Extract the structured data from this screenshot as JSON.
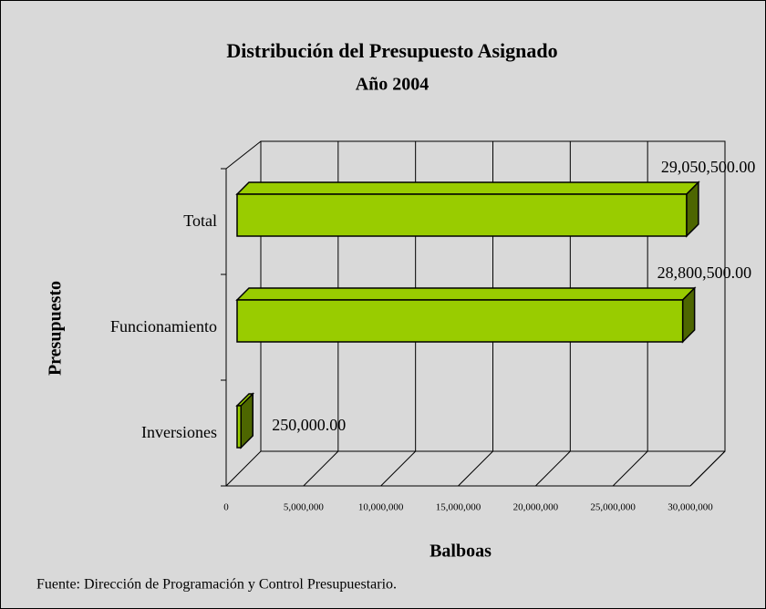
{
  "chart_data": {
    "type": "bar3d_horizontal",
    "title": "Distribución del Presupuesto Asignado",
    "subtitle": "Año 2004",
    "ylabel": "Presupuesto",
    "xlabel": "Balboas",
    "source": "Fuente: Dirección de Programación y Control Presupuestario.",
    "categories": [
      "Inversiones",
      "Funcionamiento",
      "Total"
    ],
    "values": [
      250000,
      28800500,
      29050500
    ],
    "value_labels": [
      "250,000.00",
      "28,800,500.00",
      "29,050,500.00"
    ],
    "color": "#99cc00",
    "xlim": [
      0,
      30000000
    ],
    "xticks": [
      0,
      {
        "value": 5000000,
        "label": "5,000,000"
      },
      {
        "value": 10000000,
        "label": "10,000,000"
      },
      {
        "value": 15000000,
        "label": "15,000,000"
      },
      {
        "value": 20000000,
        "label": "20,000,000"
      },
      {
        "value": 25000000,
        "label": "25,000,000"
      },
      {
        "value": 30000000,
        "label": "30,000,000"
      }
    ],
    "grid": true
  }
}
